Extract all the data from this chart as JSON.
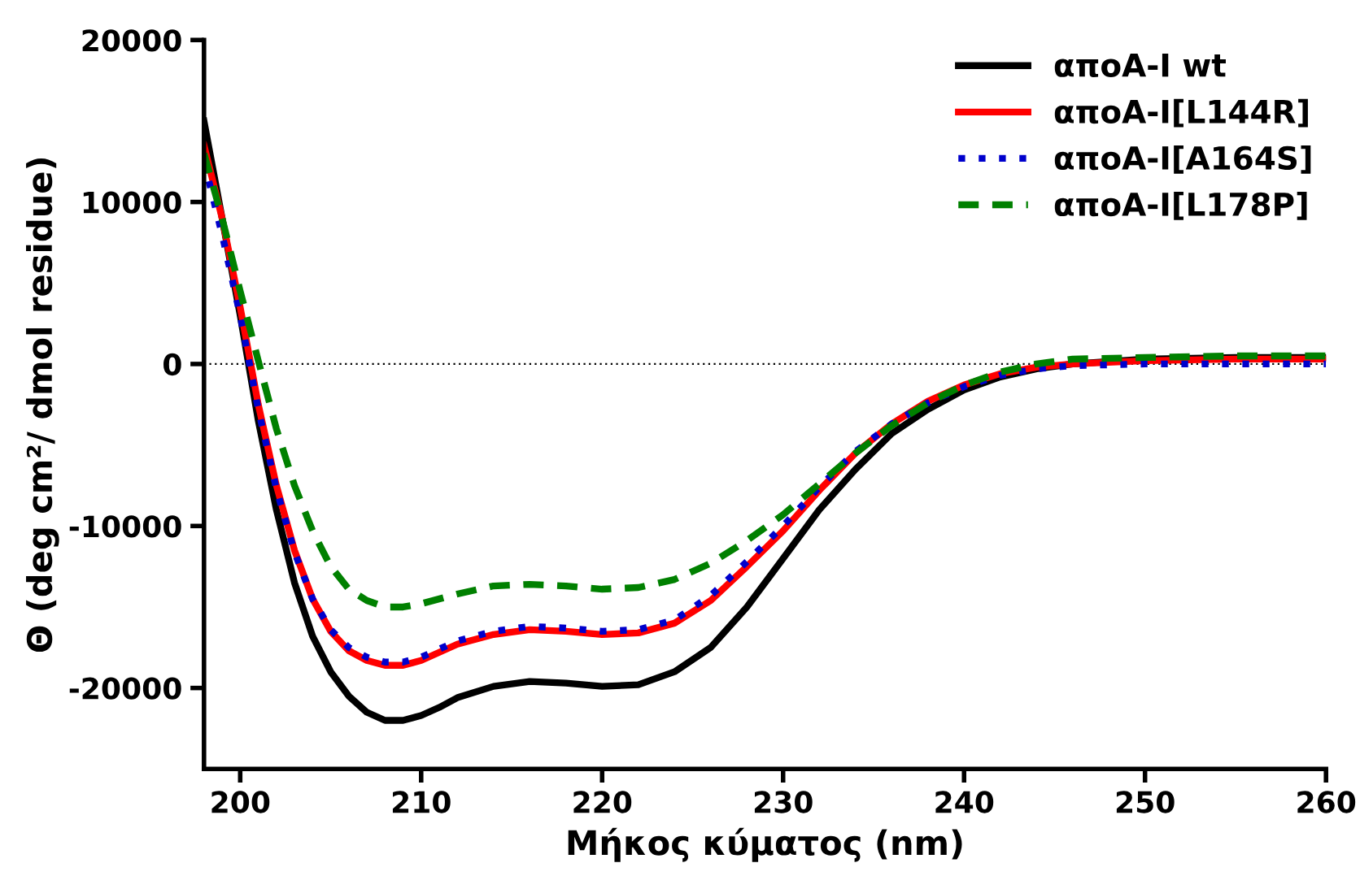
{
  "chart_data": {
    "type": "line",
    "xlabel": "Μήκος κύματος (nm)",
    "ylabel": "Θ (deg cm²/ dmol residue)",
    "xlim": [
      198,
      260
    ],
    "xticks": [
      200,
      210,
      220,
      230,
      240,
      250,
      260
    ],
    "ylim": [
      -25000,
      20000
    ],
    "yticks": [
      -20000,
      -10000,
      0,
      10000,
      20000
    ],
    "grid": false,
    "legend": "top right",
    "marker": "none",
    "ref_lines": [
      {
        "axis": "y",
        "value": 0,
        "label": null,
        "color": "#000000",
        "line_style": "dotted"
      }
    ],
    "series": [
      {
        "name": "αποA-I wt",
        "color": "#000000",
        "line_style": "solid",
        "x": [
          198,
          199,
          200,
          201,
          202,
          203,
          204,
          205,
          206,
          207,
          208,
          209,
          210,
          211,
          212,
          214,
          216,
          218,
          220,
          222,
          224,
          226,
          228,
          230,
          232,
          234,
          236,
          238,
          240,
          242,
          244,
          246,
          250,
          255,
          260
        ],
        "values": [
          15000,
          9000,
          3000,
          -3500,
          -9000,
          -13500,
          -16800,
          -19000,
          -20500,
          -21500,
          -22000,
          -22000,
          -21700,
          -21200,
          -20600,
          -19900,
          -19600,
          -19700,
          -19900,
          -19800,
          -19000,
          -17500,
          -15000,
          -12000,
          -9000,
          -6500,
          -4300,
          -2800,
          -1600,
          -800,
          -300,
          0,
          300,
          400,
          400
        ]
      },
      {
        "name": "αποA-I[L144R]",
        "color": "#ff0000",
        "line_style": "solid",
        "x": [
          198,
          199,
          200,
          201,
          202,
          203,
          204,
          205,
          206,
          207,
          208,
          209,
          210,
          212,
          214,
          216,
          218,
          220,
          222,
          224,
          226,
          228,
          230,
          232,
          234,
          236,
          238,
          240,
          242,
          244,
          246,
          250,
          255,
          260
        ],
        "values": [
          13500,
          9000,
          3500,
          -2500,
          -7500,
          -11500,
          -14500,
          -16500,
          -17700,
          -18300,
          -18600,
          -18600,
          -18300,
          -17300,
          -16700,
          -16400,
          -16500,
          -16700,
          -16600,
          -16000,
          -14600,
          -12500,
          -10300,
          -7800,
          -5500,
          -3700,
          -2300,
          -1300,
          -600,
          -200,
          0,
          200,
          300,
          300
        ]
      },
      {
        "name": "αποA-I[A164S]",
        "color": "#0000cc",
        "line_style": "dotted",
        "x": [
          198,
          199,
          200,
          201,
          202,
          203,
          204,
          205,
          206,
          207,
          208,
          209,
          210,
          212,
          214,
          216,
          218,
          220,
          222,
          224,
          226,
          228,
          230,
          232,
          234,
          236,
          238,
          240,
          242,
          244,
          246,
          250,
          255,
          260
        ],
        "values": [
          12500,
          8000,
          3000,
          -2800,
          -7700,
          -11600,
          -14500,
          -16400,
          -17500,
          -18100,
          -18400,
          -18400,
          -18100,
          -17100,
          -16500,
          -16200,
          -16300,
          -16500,
          -16400,
          -15800,
          -14300,
          -12200,
          -10000,
          -7600,
          -5400,
          -3700,
          -2400,
          -1400,
          -700,
          -300,
          -100,
          0,
          0,
          0
        ]
      },
      {
        "name": "αποA-I[L178P]",
        "color": "#008000",
        "line_style": "dashed",
        "x": [
          198,
          199,
          200,
          201,
          202,
          203,
          204,
          205,
          206,
          207,
          208,
          209,
          210,
          212,
          214,
          216,
          218,
          220,
          222,
          224,
          226,
          228,
          230,
          232,
          234,
          236,
          238,
          240,
          242,
          244,
          246,
          250,
          255,
          260
        ],
        "values": [
          13000,
          9000,
          4500,
          200,
          -4000,
          -7500,
          -10300,
          -12500,
          -13900,
          -14600,
          -15000,
          -15000,
          -14800,
          -14200,
          -13700,
          -13600,
          -13700,
          -13900,
          -13800,
          -13300,
          -12300,
          -10900,
          -9300,
          -7400,
          -5500,
          -3800,
          -2400,
          -1300,
          -500,
          0,
          300,
          400,
          500,
          500
        ]
      }
    ]
  }
}
